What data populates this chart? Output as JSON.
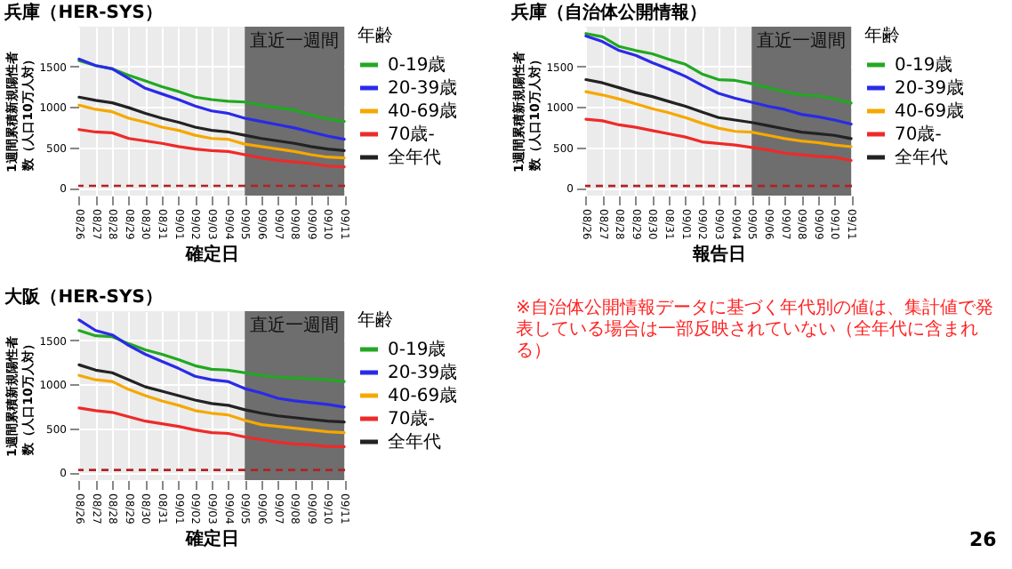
{
  "chart_data": [
    {
      "type": "line",
      "title": "兵庫（HER-SYS）",
      "xlabel": "確定日",
      "ylabel": "1週間累積新規陽性者数（人口10万人対）",
      "legend_title": "年齢",
      "legend": "right",
      "grid": true,
      "categories": [
        "08/26",
        "08/27",
        "08/28",
        "08/29",
        "08/30",
        "08/31",
        "09/01",
        "09/02",
        "09/03",
        "09/04",
        "09/05",
        "09/06",
        "09/07",
        "09/08",
        "09/09",
        "09/10",
        "09/11"
      ],
      "ylim": [
        -95,
        1990
      ],
      "yticks": [
        0,
        500,
        1000,
        1500
      ],
      "series": [
        {
          "name": "0-19歳",
          "color": "#22a822",
          "values": [
            1570,
            1510,
            1470,
            1390,
            1320,
            1250,
            1190,
            1120,
            1090,
            1070,
            1060,
            1020,
            990,
            960,
            900,
            850,
            820
          ]
        },
        {
          "name": "20-39歳",
          "color": "#2a2ae8",
          "values": [
            1590,
            1510,
            1470,
            1350,
            1230,
            1160,
            1090,
            1010,
            950,
            920,
            860,
            820,
            780,
            740,
            690,
            640,
            600
          ]
        },
        {
          "name": "40-69歳",
          "color": "#f5a800",
          "values": [
            1020,
            970,
            940,
            860,
            810,
            750,
            710,
            650,
            610,
            600,
            540,
            510,
            480,
            450,
            410,
            380,
            370
          ]
        },
        {
          "name": "70歳-",
          "color": "#ee2a2a",
          "values": [
            720,
            690,
            680,
            610,
            580,
            550,
            510,
            480,
            460,
            450,
            410,
            370,
            340,
            320,
            300,
            270,
            260
          ]
        },
        {
          "name": "全年代",
          "color": "#222222",
          "values": [
            1120,
            1080,
            1050,
            990,
            920,
            860,
            810,
            750,
            710,
            690,
            650,
            610,
            580,
            550,
            510,
            480,
            460
          ]
        }
      ],
      "ref_lines": [
        {
          "axis": "y",
          "value": 25,
          "color": "#b22222",
          "line_style": "dashed"
        }
      ],
      "bands": [
        {
          "axis": "x",
          "from": "09/05",
          "to": "09/11",
          "label": "直近一週間",
          "color": "#6e6e6e"
        }
      ]
    },
    {
      "type": "line",
      "title": "兵庫（自治体公開情報）",
      "xlabel": "報告日",
      "ylabel": "1週間累積新規陽性者数（人口10万人対）",
      "legend_title": "年齢",
      "legend": "right",
      "grid": true,
      "categories": [
        "08/26",
        "08/27",
        "08/28",
        "08/29",
        "08/30",
        "08/31",
        "09/01",
        "09/02",
        "09/03",
        "09/04",
        "09/05",
        "09/06",
        "09/07",
        "09/08",
        "09/09",
        "09/10",
        "09/11"
      ],
      "ylim": [
        -95,
        1995
      ],
      "yticks": [
        0,
        500,
        1000,
        1500
      ],
      "series": [
        {
          "name": "0-19歳",
          "color": "#22a822",
          "values": [
            1910,
            1870,
            1750,
            1700,
            1660,
            1590,
            1530,
            1410,
            1340,
            1330,
            1290,
            1240,
            1190,
            1150,
            1140,
            1100,
            1050
          ]
        },
        {
          "name": "20-39歳",
          "color": "#2a2ae8",
          "values": [
            1880,
            1810,
            1700,
            1640,
            1550,
            1470,
            1380,
            1270,
            1170,
            1110,
            1060,
            1010,
            970,
            910,
            880,
            840,
            790
          ]
        },
        {
          "name": "40-69歳",
          "color": "#f5a800",
          "values": [
            1190,
            1150,
            1100,
            1040,
            980,
            930,
            870,
            800,
            740,
            700,
            690,
            650,
            610,
            580,
            560,
            530,
            510
          ]
        },
        {
          "name": "70歳-",
          "color": "#ee2a2a",
          "values": [
            850,
            830,
            780,
            750,
            710,
            670,
            630,
            570,
            550,
            530,
            500,
            470,
            430,
            410,
            390,
            380,
            340
          ]
        },
        {
          "name": "全年代",
          "color": "#222222",
          "values": [
            1340,
            1300,
            1240,
            1180,
            1130,
            1070,
            1010,
            940,
            870,
            840,
            810,
            770,
            730,
            690,
            670,
            650,
            610
          ]
        }
      ],
      "ref_lines": [
        {
          "axis": "y",
          "value": 25,
          "color": "#b22222",
          "line_style": "dashed"
        }
      ],
      "bands": [
        {
          "axis": "x",
          "from": "09/05",
          "to": "09/11",
          "label": "直近一週間",
          "color": "#6e6e6e"
        }
      ],
      "annotations": [
        "※自治体公開情報データに基づく年代別の値は、集計値で発表している場合は一部反映されていない（全年代に含まれる）"
      ]
    },
    {
      "type": "line",
      "title": "大阪（HER-SYS）",
      "xlabel": "確定日",
      "ylabel": "1週間累積新規陽性者数（人口10万人対）",
      "legend_title": "年齢",
      "legend": "right",
      "grid": true,
      "categories": [
        "08/26",
        "08/27",
        "08/28",
        "08/29",
        "08/30",
        "08/31",
        "09/01",
        "09/02",
        "09/03",
        "09/04",
        "09/05",
        "09/06",
        "09/07",
        "09/08",
        "09/09",
        "09/10",
        "09/11"
      ],
      "ylim": [
        -90,
        1830
      ],
      "yticks": [
        0,
        500,
        1000,
        1500
      ],
      "series": [
        {
          "name": "0-19歳",
          "color": "#22a822",
          "values": [
            1610,
            1550,
            1540,
            1460,
            1390,
            1340,
            1280,
            1210,
            1170,
            1160,
            1130,
            1100,
            1080,
            1070,
            1060,
            1050,
            1030
          ]
        },
        {
          "name": "20-39歳",
          "color": "#2a2ae8",
          "values": [
            1730,
            1610,
            1560,
            1440,
            1340,
            1260,
            1180,
            1090,
            1050,
            1030,
            950,
            900,
            840,
            810,
            790,
            770,
            740
          ]
        },
        {
          "name": "40-69歳",
          "color": "#f5a800",
          "values": [
            1100,
            1050,
            1030,
            940,
            870,
            810,
            760,
            700,
            670,
            650,
            590,
            540,
            520,
            500,
            480,
            460,
            450
          ]
        },
        {
          "name": "70歳-",
          "color": "#ee2a2a",
          "values": [
            730,
            700,
            680,
            630,
            580,
            550,
            520,
            480,
            450,
            440,
            400,
            370,
            340,
            320,
            310,
            290,
            290
          ]
        },
        {
          "name": "全年代",
          "color": "#222222",
          "values": [
            1220,
            1160,
            1130,
            1050,
            970,
            920,
            870,
            820,
            780,
            760,
            710,
            670,
            640,
            620,
            600,
            580,
            570
          ]
        }
      ],
      "ref_lines": [
        {
          "axis": "y",
          "value": 25,
          "color": "#b22222",
          "line_style": "dashed"
        }
      ],
      "bands": [
        {
          "axis": "x",
          "from": "09/05",
          "to": "09/11",
          "label": "直近一週間",
          "color": "#6e6e6e"
        }
      ],
      "annotations": [
        "26"
      ]
    }
  ]
}
